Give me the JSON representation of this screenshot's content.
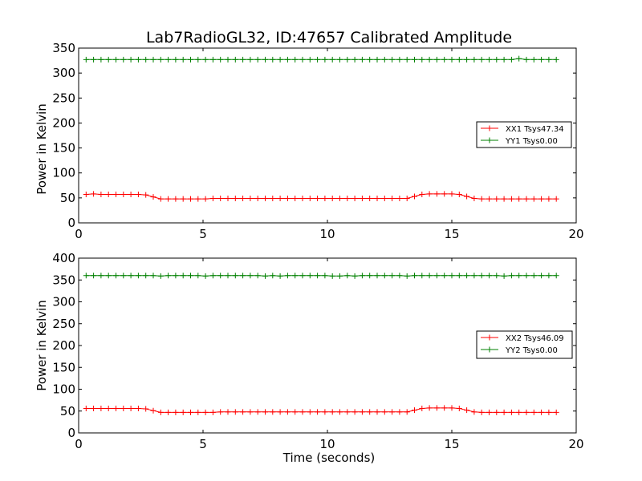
{
  "chart_data": [
    {
      "type": "line",
      "title": "Lab7RadioGL32, ID:47657 Calibrated Amplitude",
      "xlabel": "",
      "ylabel": "Power in Kelvin",
      "xlim": [
        0,
        20
      ],
      "ylim": [
        0,
        350
      ],
      "xticks": [
        "0",
        "5",
        "10",
        "15",
        "20"
      ],
      "yticks": [
        "0",
        "50",
        "100",
        "150",
        "200",
        "250",
        "300",
        "350"
      ],
      "grid": false,
      "legend_position": "center-right",
      "x": [
        0.3,
        0.6,
        0.9,
        1.2,
        1.5,
        1.8,
        2.1,
        2.4,
        2.7,
        3.0,
        3.3,
        3.6,
        3.9,
        4.2,
        4.5,
        4.8,
        5.1,
        5.4,
        5.7,
        6.0,
        6.3,
        6.6,
        6.9,
        7.2,
        7.5,
        7.8,
        8.1,
        8.4,
        8.7,
        9.0,
        9.3,
        9.6,
        9.9,
        10.2,
        10.5,
        10.8,
        11.1,
        11.4,
        11.7,
        12.0,
        12.3,
        12.6,
        12.9,
        13.2,
        13.5,
        13.8,
        14.1,
        14.4,
        14.7,
        15.0,
        15.3,
        15.6,
        15.9,
        16.2,
        16.5,
        16.8,
        17.1,
        17.4,
        17.7,
        18.0,
        18.3,
        18.6,
        18.9,
        19.2
      ],
      "series": [
        {
          "name": "XX1 Tsys47.34",
          "color": "#ff0000",
          "values": [
            57,
            58,
            57,
            57,
            57,
            57,
            57,
            57,
            56,
            52,
            48,
            48,
            48,
            48,
            48,
            48,
            48,
            49,
            49,
            49,
            49,
            49,
            49,
            49,
            49,
            49,
            49,
            49,
            49,
            49,
            49,
            49,
            49,
            49,
            49,
            49,
            49,
            49,
            49,
            49,
            49,
            49,
            49,
            49,
            53,
            57,
            58,
            58,
            58,
            58,
            57,
            53,
            49,
            48,
            48,
            48,
            48,
            48,
            48,
            48,
            48,
            48,
            48,
            48
          ]
        },
        {
          "name": "YY1 Tsys0.00",
          "color": "#008000",
          "values": [
            327,
            327,
            327,
            327,
            327,
            327,
            327,
            327,
            327,
            327,
            327,
            327,
            327,
            327,
            327,
            327,
            327,
            327,
            327,
            327,
            327,
            327,
            327,
            327,
            327,
            327,
            327,
            327,
            327,
            327,
            327,
            327,
            327,
            327,
            327,
            327,
            327,
            327,
            327,
            327,
            327,
            327,
            327,
            327,
            327,
            327,
            327,
            327,
            327,
            327,
            327,
            327,
            327,
            327,
            327,
            327,
            327,
            327,
            329,
            327,
            327,
            327,
            327,
            327
          ]
        }
      ]
    },
    {
      "type": "line",
      "title": "",
      "xlabel": "Time (seconds)",
      "ylabel": "Power in Kelvin",
      "xlim": [
        0,
        20
      ],
      "ylim": [
        0,
        400
      ],
      "xticks": [
        "0",
        "5",
        "10",
        "15",
        "20"
      ],
      "yticks": [
        "0",
        "50",
        "100",
        "150",
        "200",
        "250",
        "300",
        "350",
        "400"
      ],
      "grid": false,
      "legend_position": "center-right",
      "x": [
        0.3,
        0.6,
        0.9,
        1.2,
        1.5,
        1.8,
        2.1,
        2.4,
        2.7,
        3.0,
        3.3,
        3.6,
        3.9,
        4.2,
        4.5,
        4.8,
        5.1,
        5.4,
        5.7,
        6.0,
        6.3,
        6.6,
        6.9,
        7.2,
        7.5,
        7.8,
        8.1,
        8.4,
        8.7,
        9.0,
        9.3,
        9.6,
        9.9,
        10.2,
        10.5,
        10.8,
        11.1,
        11.4,
        11.7,
        12.0,
        12.3,
        12.6,
        12.9,
        13.2,
        13.5,
        13.8,
        14.1,
        14.4,
        14.7,
        15.0,
        15.3,
        15.6,
        15.9,
        16.2,
        16.5,
        16.8,
        17.1,
        17.4,
        17.7,
        18.0,
        18.3,
        18.6,
        18.9,
        19.2
      ],
      "series": [
        {
          "name": "XX2 Tsys46.09",
          "color": "#ff0000",
          "values": [
            56,
            56,
            56,
            56,
            56,
            56,
            56,
            56,
            55,
            51,
            47,
            47,
            47,
            47,
            47,
            47,
            47,
            47,
            48,
            48,
            48,
            48,
            48,
            48,
            48,
            48,
            48,
            48,
            48,
            48,
            48,
            48,
            48,
            48,
            48,
            48,
            48,
            48,
            48,
            48,
            48,
            48,
            48,
            48,
            52,
            56,
            57,
            57,
            57,
            57,
            56,
            52,
            48,
            47,
            47,
            47,
            47,
            47,
            47,
            47,
            47,
            47,
            47,
            47
          ]
        },
        {
          "name": "YY2 Tsys0.00",
          "color": "#008000",
          "values": [
            360,
            360,
            360,
            360,
            360,
            360,
            360,
            360,
            360,
            360,
            359,
            360,
            360,
            360,
            360,
            360,
            359,
            360,
            360,
            360,
            360,
            360,
            360,
            360,
            359,
            360,
            359,
            360,
            360,
            360,
            360,
            360,
            360,
            359,
            359,
            360,
            359,
            360,
            360,
            360,
            360,
            360,
            360,
            359,
            360,
            360,
            360,
            360,
            360,
            360,
            360,
            360,
            360,
            360,
            360,
            360,
            359,
            360,
            360,
            360,
            360,
            360,
            360,
            360
          ]
        }
      ]
    }
  ]
}
